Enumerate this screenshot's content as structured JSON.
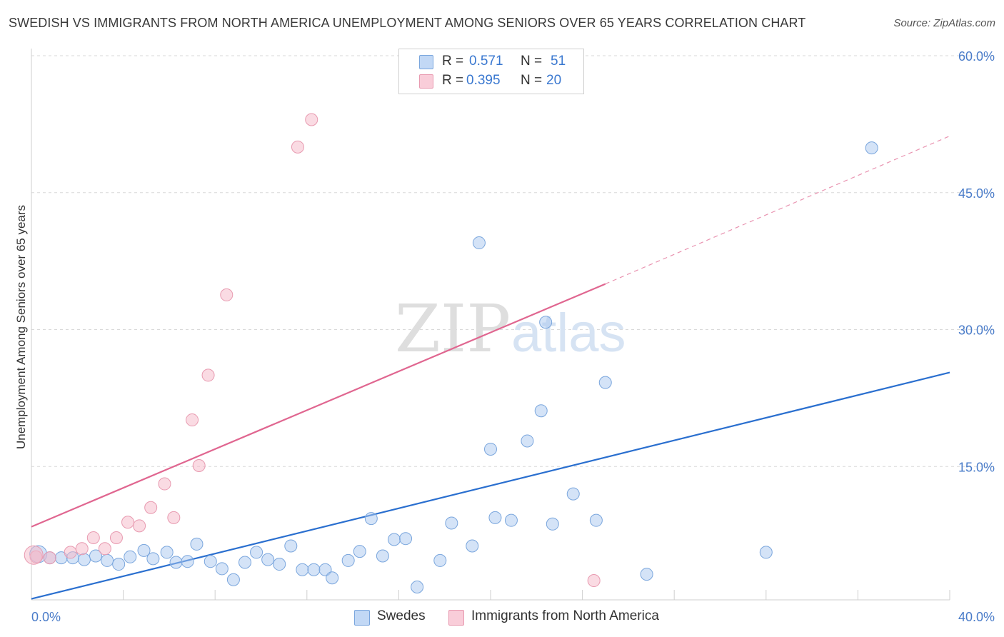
{
  "header": {
    "title": "SWEDISH VS IMMIGRANTS FROM NORTH AMERICA UNEMPLOYMENT AMONG SENIORS OVER 65 YEARS CORRELATION CHART",
    "source": "Source: ZipAtlas.com"
  },
  "watermark": {
    "zip": "ZIP",
    "atlas": "atlas"
  },
  "legend": {
    "r_label": "R =",
    "n_label": "N =",
    "rows": [
      {
        "r": "0.571",
        "n": "51",
        "color": "#a9c8f0"
      },
      {
        "r": "0.395",
        "n": "20",
        "color": "#f6b8c8"
      }
    ]
  },
  "bottom_legend": [
    {
      "label": "Swedes",
      "color": "#a9c8f0"
    },
    {
      "label": "Immigrants from North America",
      "color": "#f6b8c8"
    }
  ],
  "chart_data": {
    "type": "scatter",
    "title": "SWEDISH VS IMMIGRANTS FROM NORTH AMERICA UNEMPLOYMENT AMONG SENIORS OVER 65 YEARS CORRELATION CHART",
    "xlabel": "",
    "ylabel": "Unemployment Among Seniors over 65 years",
    "xlim": [
      0,
      40
    ],
    "ylim": [
      0,
      60
    ],
    "x_tick_labels": [
      "0.0%",
      "40.0%"
    ],
    "y_ticks": [
      15,
      30,
      45,
      60
    ],
    "y_tick_labels": [
      "15.0%",
      "30.0%",
      "45.0%",
      "60.0%"
    ],
    "grid": true,
    "legend_position": "top-center",
    "series": [
      {
        "name": "Swedes",
        "color": "#a9c8f0",
        "stroke": "#7aa6dd",
        "trend_color": "#2a6fcf",
        "trend": {
          "x0": 0,
          "y0": 0.5,
          "x1": 40,
          "y1": 25.3
        },
        "points": [
          [
            0.3,
            5.4
          ],
          [
            0.8,
            5.0
          ],
          [
            1.3,
            5.0
          ],
          [
            1.8,
            5.0
          ],
          [
            2.3,
            4.8
          ],
          [
            2.8,
            5.2
          ],
          [
            3.3,
            4.7
          ],
          [
            3.8,
            4.3
          ],
          [
            4.3,
            5.1
          ],
          [
            4.9,
            5.8
          ],
          [
            5.3,
            4.9
          ],
          [
            5.9,
            5.6
          ],
          [
            6.3,
            4.5
          ],
          [
            6.8,
            4.6
          ],
          [
            7.2,
            6.5
          ],
          [
            7.8,
            4.6
          ],
          [
            8.3,
            3.8
          ],
          [
            8.8,
            2.6
          ],
          [
            9.3,
            4.5
          ],
          [
            9.8,
            5.6
          ],
          [
            10.3,
            4.8
          ],
          [
            10.8,
            4.3
          ],
          [
            11.3,
            6.3
          ],
          [
            11.8,
            3.7
          ],
          [
            12.3,
            3.7
          ],
          [
            12.8,
            3.7
          ],
          [
            13.1,
            2.8
          ],
          [
            13.8,
            4.7
          ],
          [
            14.3,
            5.7
          ],
          [
            14.8,
            9.3
          ],
          [
            15.3,
            5.2
          ],
          [
            15.8,
            7.0
          ],
          [
            16.3,
            7.1
          ],
          [
            16.8,
            1.8
          ],
          [
            17.8,
            4.7
          ],
          [
            18.3,
            8.8
          ],
          [
            19.2,
            6.3
          ],
          [
            19.5,
            39.5
          ],
          [
            20.0,
            16.9
          ],
          [
            20.2,
            9.4
          ],
          [
            20.9,
            9.1
          ],
          [
            21.6,
            17.8
          ],
          [
            22.2,
            21.1
          ],
          [
            22.4,
            30.8
          ],
          [
            22.7,
            8.7
          ],
          [
            23.6,
            12.0
          ],
          [
            24.6,
            9.1
          ],
          [
            25.0,
            24.2
          ],
          [
            26.8,
            3.2
          ],
          [
            32.0,
            5.6
          ],
          [
            36.6,
            49.9
          ]
        ]
      },
      {
        "name": "Immigrants from North America",
        "color": "#f6b8c8",
        "stroke": "#e89ab0",
        "trend_color": "#e06690",
        "trend": {
          "x0": 0,
          "y0": 8.4,
          "x1": 25.0,
          "y1": 35.0
        },
        "trend_dashed": {
          "x0": 25.0,
          "y0": 35.0,
          "x1": 40,
          "y1": 51.2
        },
        "points": [
          [
            0.2,
            5.1
          ],
          [
            0.8,
            5.0
          ],
          [
            1.7,
            5.6
          ],
          [
            2.2,
            6.0
          ],
          [
            2.7,
            7.2
          ],
          [
            3.2,
            6.0
          ],
          [
            3.7,
            7.2
          ],
          [
            4.2,
            8.9
          ],
          [
            4.7,
            8.5
          ],
          [
            5.2,
            10.5
          ],
          [
            5.8,
            13.1
          ],
          [
            6.2,
            9.4
          ],
          [
            7.0,
            20.1
          ],
          [
            7.3,
            15.1
          ],
          [
            7.7,
            25.0
          ],
          [
            8.5,
            33.8
          ],
          [
            11.6,
            50.0
          ],
          [
            12.2,
            53.0
          ],
          [
            24.5,
            2.5
          ],
          [
            0.1,
            5.3
          ]
        ]
      }
    ]
  }
}
